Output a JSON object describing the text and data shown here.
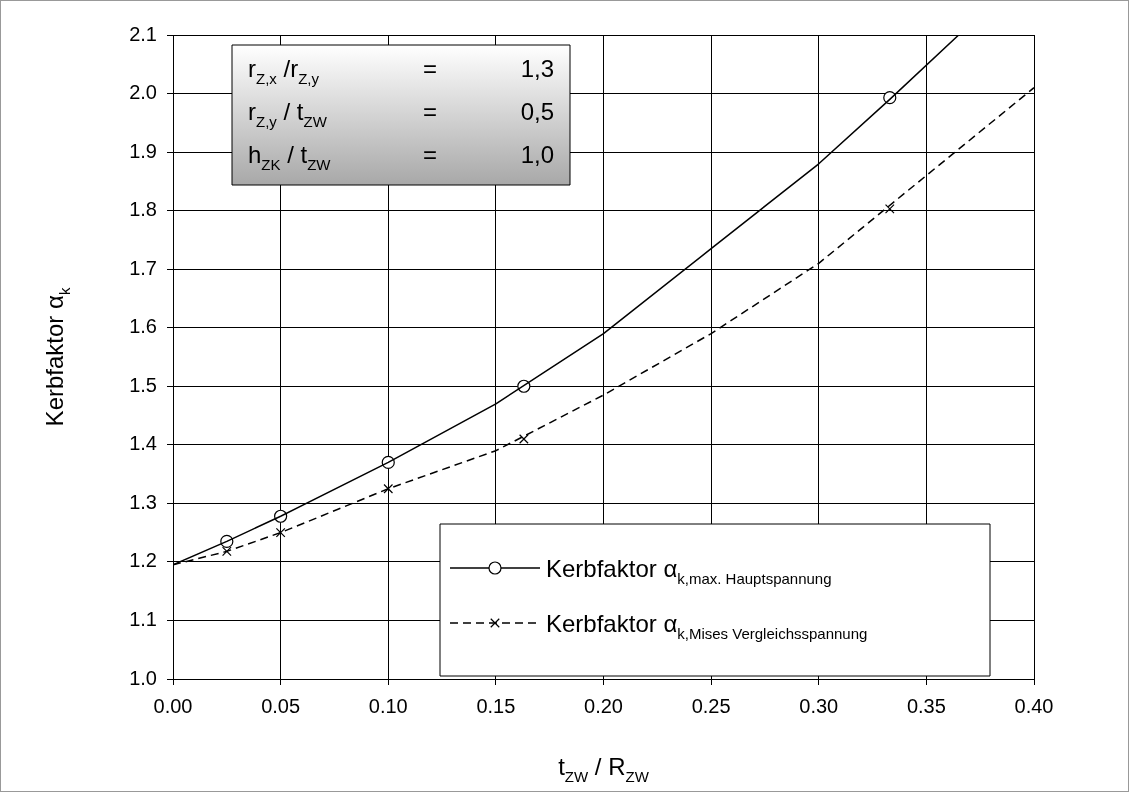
{
  "chart_data": {
    "type": "line",
    "xlabel": "t$_{ZW}$ / R$_{ZW}$",
    "ylabel": "Kerbfaktor α$_{k}$",
    "xlim": [
      0,
      0.4
    ],
    "ylim": [
      1,
      2.1
    ],
    "xticks": [
      {
        "value": 0,
        "label": "0.00"
      },
      {
        "value": 0.05,
        "label": "0.05"
      },
      {
        "value": 0.1,
        "label": "0.10"
      },
      {
        "value": 0.15,
        "label": "0.15"
      },
      {
        "value": 0.2,
        "label": "0.20"
      },
      {
        "value": 0.25,
        "label": "0.25"
      },
      {
        "value": 0.3,
        "label": "0.30"
      },
      {
        "value": 0.35,
        "label": "0.35"
      },
      {
        "value": 0.4,
        "label": "0.40"
      }
    ],
    "yticks": [
      {
        "value": 1,
        "label": "1.0"
      },
      1.1,
      1.2,
      1.3,
      1.4,
      1.5,
      1.6,
      1.7,
      1.8,
      1.9,
      {
        "value": 2,
        "label": "2.0"
      },
      2.1
    ],
    "grid": true,
    "legend": "bottom right",
    "annotations": [
      "r$_{Z,x}$ /r$_{Z,y}$ = 1,3",
      "r$_{Z,y}$ / t$_{ZW}$ = 0,5",
      "h$_{ZK}$ / t$_{ZW}$ = 1,0"
    ],
    "series": [
      {
        "name": "Kerbfaktor α$_{k,max. Hauptspannung}$",
        "color": "#000000",
        "line_style": "solid",
        "marker": "none",
        "x": [
          0,
          0.025,
          0.05,
          0.1,
          0.15,
          0.2,
          0.25,
          0.3,
          0.333,
          0.365
        ],
        "values": [
          1.195,
          1.235,
          1.278,
          1.37,
          1.47,
          1.59,
          1.735,
          1.88,
          1.99,
          2.1
        ]
      },
      {
        "type": "scatter",
        "color": "#000000",
        "marker": "circle",
        "x": [
          0.025,
          0.05,
          0.1,
          0.163,
          0.333
        ],
        "values": [
          1.235,
          1.278,
          1.37,
          1.5,
          1.993
        ]
      },
      {
        "name": "Kerbfaktor α$_{k,Mises Vergleichsspannung}$",
        "color": "#000000",
        "line_style": "dashed",
        "marker": "none",
        "x": [
          0,
          0.025,
          0.05,
          0.1,
          0.15,
          0.2,
          0.25,
          0.3,
          0.35,
          0.4
        ],
        "values": [
          1.195,
          1.218,
          1.25,
          1.325,
          1.39,
          1.485,
          1.59,
          1.71,
          1.86,
          2.01
        ]
      },
      {
        "type": "scatter",
        "color": "#000000",
        "marker": "cross",
        "x": [
          0.025,
          0.05,
          0.1,
          0.163,
          0.333
        ],
        "values": [
          1.218,
          1.25,
          1.325,
          1.41,
          1.803
        ]
      }
    ]
  }
}
